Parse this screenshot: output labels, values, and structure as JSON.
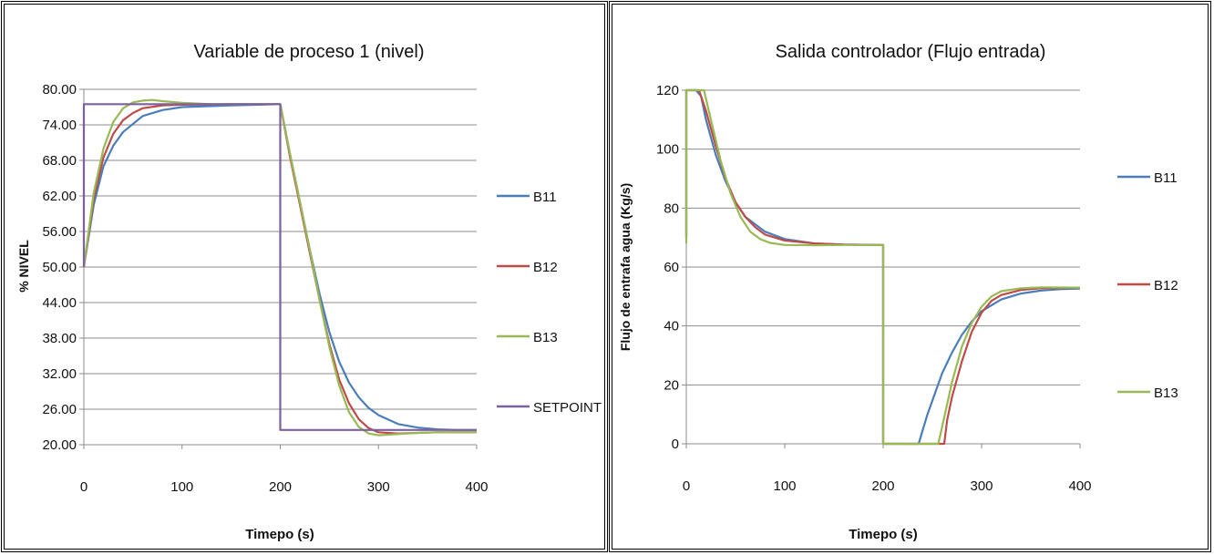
{
  "chart_data": [
    {
      "type": "line",
      "title": "Variable de proceso  1 (nivel)",
      "xlabel": "Timepo (s)",
      "ylabel": "% NIVEL",
      "xlim": [
        0,
        400
      ],
      "ylim": [
        20,
        80
      ],
      "xticks": [
        "0",
        "100",
        "200",
        "300",
        "400"
      ],
      "yticks": [
        "20.00",
        "26.00",
        "32.00",
        "38.00",
        "44.00",
        "50.00",
        "56.00",
        "62.00",
        "68.00",
        "74.00",
        "80.00"
      ],
      "grid": true,
      "legend_position": "right",
      "series": [
        {
          "name": "B11",
          "color": "#4a7ebb",
          "x": [
            0,
            10,
            20,
            30,
            40,
            60,
            80,
            100,
            150,
            200,
            210,
            220,
            230,
            240,
            250,
            260,
            270,
            280,
            290,
            300,
            320,
            340,
            360,
            380,
            400
          ],
          "y": [
            50,
            60.5,
            67,
            70.5,
            72.8,
            75.5,
            76.5,
            77,
            77.3,
            77.5,
            69,
            61,
            53,
            45.5,
            39,
            34,
            30.5,
            28,
            26.2,
            25,
            23.5,
            22.9,
            22.6,
            22.5,
            22.5
          ]
        },
        {
          "name": "B12",
          "color": "#be4b48",
          "x": [
            0,
            10,
            20,
            30,
            40,
            50,
            60,
            80,
            100,
            150,
            200,
            210,
            220,
            230,
            240,
            250,
            260,
            270,
            280,
            290,
            300,
            320,
            340,
            360,
            400
          ],
          "y": [
            50,
            61.5,
            68.5,
            72.5,
            74.8,
            76,
            76.8,
            77.3,
            77.4,
            77.5,
            77.5,
            68.5,
            60.5,
            52.5,
            44.5,
            37,
            31,
            27,
            24.3,
            22.8,
            22.1,
            21.9,
            22,
            22.1,
            22.1
          ]
        },
        {
          "name": "B13",
          "color": "#98b954",
          "x": [
            0,
            10,
            20,
            30,
            40,
            50,
            60,
            70,
            80,
            100,
            130,
            160,
            200,
            210,
            220,
            230,
            240,
            250,
            260,
            270,
            280,
            290,
            300,
            320,
            340,
            360,
            400
          ],
          "y": [
            50,
            62.5,
            70,
            74.5,
            76.8,
            77.8,
            78.1,
            78.2,
            78,
            77.7,
            77.5,
            77.5,
            77.5,
            69,
            61,
            53,
            44.5,
            36.5,
            30,
            25.5,
            23,
            21.9,
            21.6,
            21.8,
            22,
            22.1,
            22.1
          ]
        },
        {
          "name": "SETPOINT",
          "color": "#7d60a0",
          "x": [
            0,
            0,
            200,
            200,
            400
          ],
          "y": [
            50,
            77.5,
            77.5,
            22.5,
            22.5
          ]
        }
      ]
    },
    {
      "type": "line",
      "title": "Salida controlador (Flujo entrada)",
      "xlabel": "Timepo (s)",
      "ylabel": "Flujo de entrafa agua (Kg/s)",
      "xlim": [
        0,
        400
      ],
      "ylim": [
        0,
        120
      ],
      "xticks": [
        "0",
        "100",
        "200",
        "300",
        "400"
      ],
      "yticks": [
        "0",
        "20",
        "40",
        "60",
        "80",
        "100",
        "120"
      ],
      "grid": true,
      "legend_position": "right",
      "series": [
        {
          "name": "B11",
          "color": "#4a7ebb",
          "x": [
            0,
            0,
            10,
            15,
            20,
            30,
            40,
            50,
            60,
            80,
            100,
            130,
            160,
            200,
            200,
            236,
            245,
            260,
            270,
            280,
            290,
            300,
            320,
            340,
            360,
            380,
            400
          ],
          "y": [
            70,
            120,
            120,
            118,
            110,
            98,
            89,
            82,
            77,
            72,
            69.5,
            68,
            67.6,
            67.5,
            0,
            0,
            10,
            24,
            31,
            37,
            41.5,
            45,
            49,
            51,
            52,
            52.5,
            52.7
          ]
        },
        {
          "name": "B12",
          "color": "#be4b48",
          "x": [
            0,
            0,
            13,
            20,
            30,
            40,
            50,
            60,
            70,
            80,
            100,
            130,
            160,
            200,
            200,
            262,
            265,
            270,
            280,
            290,
            300,
            310,
            320,
            340,
            360,
            400
          ],
          "y": [
            70,
            120,
            120,
            113,
            101,
            90,
            82,
            77,
            73.5,
            71,
            69,
            68,
            67.6,
            67.5,
            0,
            0,
            8,
            16,
            28,
            38,
            44.5,
            48.5,
            50.5,
            52.2,
            52.8,
            53
          ]
        },
        {
          "name": "B13",
          "color": "#98b954",
          "x": [
            0,
            0,
            18,
            25,
            35,
            45,
            55,
            65,
            75,
            85,
            100,
            130,
            160,
            200,
            200,
            256,
            262,
            270,
            280,
            290,
            300,
            310,
            320,
            340,
            360,
            400
          ],
          "y": [
            68,
            120,
            120,
            110,
            96,
            85,
            77,
            72,
            69.5,
            68.2,
            67.5,
            67.4,
            67.5,
            67.5,
            0,
            0,
            9,
            21,
            33,
            41,
            46.5,
            50,
            51.8,
            52.8,
            53.1,
            53
          ]
        }
      ]
    }
  ]
}
